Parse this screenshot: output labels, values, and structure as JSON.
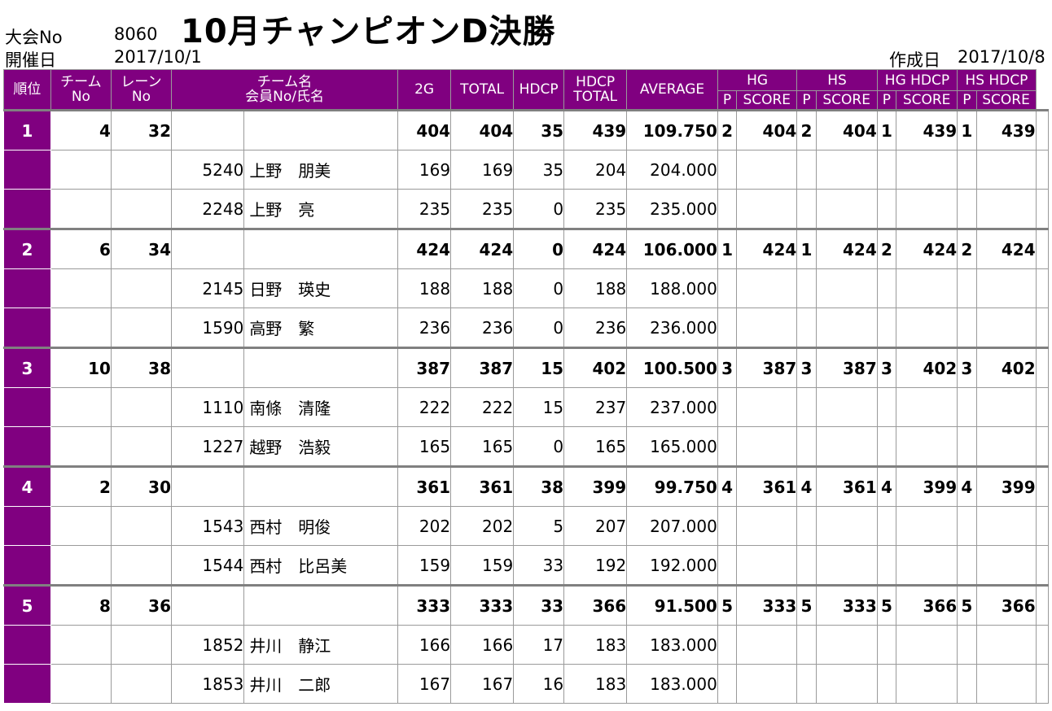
{
  "meta": {
    "tournament_label": "大会No",
    "tournament_no": "8060",
    "date_label": "開催日",
    "date": "2017/10/1",
    "title": "10月チャンピオンD決勝",
    "created_label": "作成日",
    "created": "2017/10/8"
  },
  "headers": {
    "rank": "順位",
    "team_no_1": "チーム",
    "team_no_2": "No",
    "lane_no_1": "レーン",
    "lane_no_2": "No",
    "team_name_1": "チーム名",
    "team_name_2": "会員No/氏名",
    "g2": "2G",
    "total": "TOTAL",
    "hdcp": "HDCP",
    "hdcp_total_1": "HDCP",
    "hdcp_total_2": "TOTAL",
    "average": "AVERAGE",
    "hg": "HG",
    "hs": "HS",
    "hg_hdcp": "HG HDCP",
    "hs_hdcp": "HS HDCP",
    "p": "P",
    "score": "SCORE"
  },
  "teams": [
    {
      "rank": "1",
      "team_no": "4",
      "lane_no": "32",
      "g2": "404",
      "total": "404",
      "hdcp": "35",
      "hdcp_total": "439",
      "average": "109.750",
      "hg_p": "2",
      "hg_score": "404",
      "hs_p": "2",
      "hs_score": "404",
      "hgh_p": "1",
      "hgh_score": "439",
      "hsh_p": "1",
      "hsh_score": "439",
      "members": [
        {
          "no": "5240",
          "name": "上野　朋美",
          "g2": "169",
          "total": "169",
          "hdcp": "35",
          "hdcp_total": "204",
          "average": "204.000"
        },
        {
          "no": "2248",
          "name": "上野　亮",
          "g2": "235",
          "total": "235",
          "hdcp": "0",
          "hdcp_total": "235",
          "average": "235.000"
        }
      ]
    },
    {
      "rank": "2",
      "team_no": "6",
      "lane_no": "34",
      "g2": "424",
      "total": "424",
      "hdcp": "0",
      "hdcp_total": "424",
      "average": "106.000",
      "hg_p": "1",
      "hg_score": "424",
      "hs_p": "1",
      "hs_score": "424",
      "hgh_p": "2",
      "hgh_score": "424",
      "hsh_p": "2",
      "hsh_score": "424",
      "members": [
        {
          "no": "2145",
          "name": "日野　瑛史",
          "g2": "188",
          "total": "188",
          "hdcp": "0",
          "hdcp_total": "188",
          "average": "188.000"
        },
        {
          "no": "1590",
          "name": "高野　繁",
          "g2": "236",
          "total": "236",
          "hdcp": "0",
          "hdcp_total": "236",
          "average": "236.000"
        }
      ]
    },
    {
      "rank": "3",
      "team_no": "10",
      "lane_no": "38",
      "g2": "387",
      "total": "387",
      "hdcp": "15",
      "hdcp_total": "402",
      "average": "100.500",
      "hg_p": "3",
      "hg_score": "387",
      "hs_p": "3",
      "hs_score": "387",
      "hgh_p": "3",
      "hgh_score": "402",
      "hsh_p": "3",
      "hsh_score": "402",
      "members": [
        {
          "no": "1110",
          "name": "南條　清隆",
          "g2": "222",
          "total": "222",
          "hdcp": "15",
          "hdcp_total": "237",
          "average": "237.000"
        },
        {
          "no": "1227",
          "name": "越野　浩毅",
          "g2": "165",
          "total": "165",
          "hdcp": "0",
          "hdcp_total": "165",
          "average": "165.000"
        }
      ]
    },
    {
      "rank": "4",
      "team_no": "2",
      "lane_no": "30",
      "g2": "361",
      "total": "361",
      "hdcp": "38",
      "hdcp_total": "399",
      "average": "99.750",
      "hg_p": "4",
      "hg_score": "361",
      "hs_p": "4",
      "hs_score": "361",
      "hgh_p": "4",
      "hgh_score": "399",
      "hsh_p": "4",
      "hsh_score": "399",
      "members": [
        {
          "no": "1543",
          "name": "西村　明俊",
          "g2": "202",
          "total": "202",
          "hdcp": "5",
          "hdcp_total": "207",
          "average": "207.000"
        },
        {
          "no": "1544",
          "name": "西村　比呂美",
          "g2": "159",
          "total": "159",
          "hdcp": "33",
          "hdcp_total": "192",
          "average": "192.000"
        }
      ]
    },
    {
      "rank": "5",
      "team_no": "8",
      "lane_no": "36",
      "g2": "333",
      "total": "333",
      "hdcp": "33",
      "hdcp_total": "366",
      "average": "91.500",
      "hg_p": "5",
      "hg_score": "333",
      "hs_p": "5",
      "hs_score": "333",
      "hgh_p": "5",
      "hgh_score": "366",
      "hsh_p": "5",
      "hsh_score": "366",
      "members": [
        {
          "no": "1852",
          "name": "井川　静江",
          "g2": "166",
          "total": "166",
          "hdcp": "17",
          "hdcp_total": "183",
          "average": "183.000"
        },
        {
          "no": "1853",
          "name": "井川　二郎",
          "g2": "167",
          "total": "167",
          "hdcp": "16",
          "hdcp_total": "183",
          "average": "183.000"
        }
      ]
    }
  ]
}
